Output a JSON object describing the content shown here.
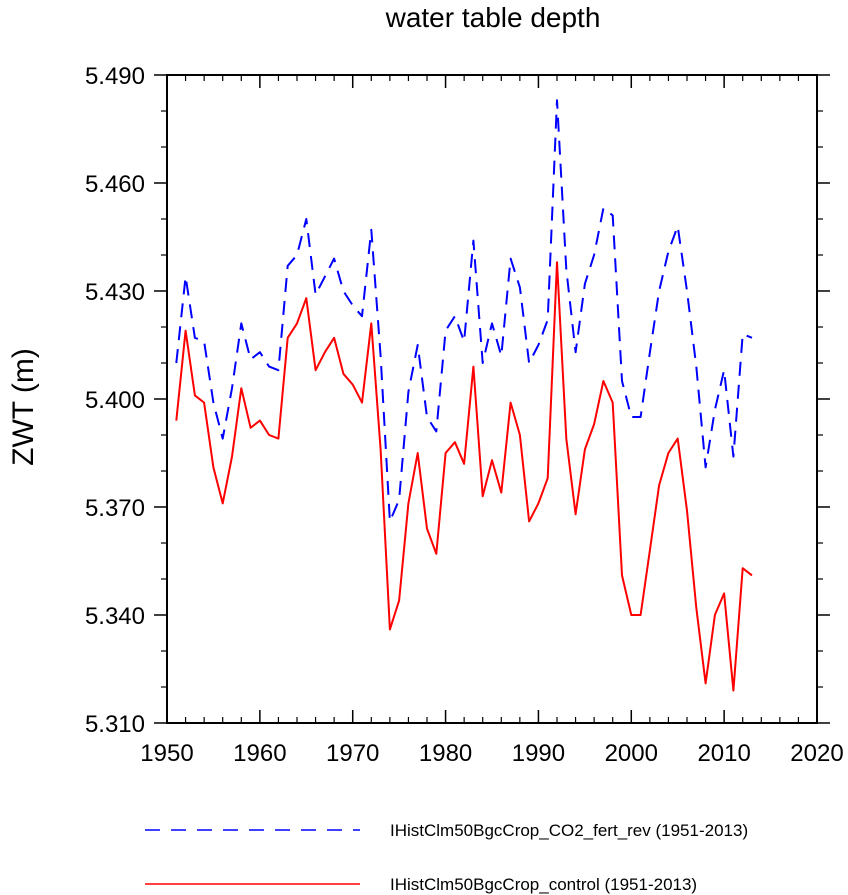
{
  "chart_data": {
    "type": "line",
    "title": "water table depth",
    "xlabel": "",
    "ylabel": "ZWT  (m)",
    "xlim": [
      1950,
      2020
    ],
    "ylim": [
      5.31,
      5.49
    ],
    "xticks": [
      "1950",
      "1960",
      "1970",
      "1980",
      "1990",
      "2000",
      "2010",
      "2020"
    ],
    "yticks": [
      "5.310",
      "5.340",
      "5.370",
      "5.400",
      "5.430",
      "5.460",
      "5.490"
    ],
    "grid": false,
    "legend_position": "bottom",
    "x": [
      1951,
      1952,
      1953,
      1954,
      1955,
      1956,
      1957,
      1958,
      1959,
      1960,
      1961,
      1962,
      1963,
      1964,
      1965,
      1966,
      1967,
      1968,
      1969,
      1970,
      1971,
      1972,
      1973,
      1974,
      1975,
      1976,
      1977,
      1978,
      1979,
      1980,
      1981,
      1982,
      1983,
      1984,
      1985,
      1986,
      1987,
      1988,
      1989,
      1990,
      1991,
      1992,
      1993,
      1994,
      1995,
      1996,
      1997,
      1998,
      1999,
      2000,
      2001,
      2002,
      2003,
      2004,
      2005,
      2006,
      2007,
      2008,
      2009,
      2010,
      2011,
      2012,
      2013
    ],
    "series": [
      {
        "name": "IHistClm50BgcCrop_CO2_fert_rev (1951-2013)",
        "color": "#0000ff",
        "style": "dashed",
        "values": [
          5.41,
          5.434,
          5.417,
          5.416,
          5.399,
          5.389,
          5.403,
          5.421,
          5.411,
          5.413,
          5.409,
          5.408,
          5.437,
          5.44,
          5.45,
          5.429,
          5.434,
          5.439,
          5.43,
          5.426,
          5.423,
          5.447,
          5.412,
          5.366,
          5.372,
          5.402,
          5.415,
          5.395,
          5.391,
          5.419,
          5.423,
          5.416,
          5.444,
          5.41,
          5.421,
          5.412,
          5.439,
          5.431,
          5.41,
          5.415,
          5.422,
          5.483,
          5.436,
          5.413,
          5.432,
          5.44,
          5.453,
          5.451,
          5.405,
          5.395,
          5.395,
          5.413,
          5.43,
          5.441,
          5.448,
          5.43,
          5.409,
          5.381,
          5.397,
          5.408,
          5.384,
          5.418,
          5.417
        ]
      },
      {
        "name": "IHistClm50BgcCrop_control (1951-2013)",
        "color": "#ff0000",
        "style": "solid",
        "values": [
          5.394,
          5.419,
          5.401,
          5.399,
          5.381,
          5.371,
          5.384,
          5.403,
          5.392,
          5.394,
          5.39,
          5.389,
          5.417,
          5.421,
          5.428,
          5.408,
          5.413,
          5.417,
          5.407,
          5.404,
          5.399,
          5.421,
          5.386,
          5.336,
          5.344,
          5.371,
          5.385,
          5.364,
          5.357,
          5.385,
          5.388,
          5.382,
          5.409,
          5.373,
          5.383,
          5.374,
          5.399,
          5.39,
          5.366,
          5.371,
          5.378,
          5.438,
          5.389,
          5.368,
          5.386,
          5.393,
          5.405,
          5.399,
          5.351,
          5.34,
          5.34,
          5.358,
          5.376,
          5.385,
          5.389,
          5.369,
          5.342,
          5.321,
          5.34,
          5.346,
          5.319,
          5.353,
          5.351
        ]
      }
    ]
  }
}
